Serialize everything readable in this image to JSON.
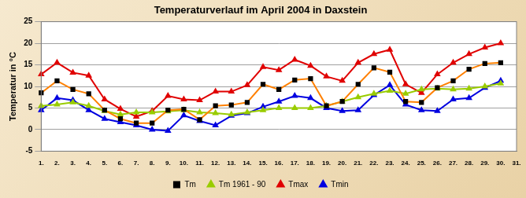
{
  "chart_data": {
    "type": "line",
    "title": "Temperaturverlauf im April 2004 in Daxstein",
    "y_label": "Temperatur in °C",
    "categories": [
      "1.",
      "2.",
      "3.",
      "4.",
      "5.",
      "6.",
      "7.",
      "8.",
      "9.",
      "10.",
      "11.",
      "12.",
      "13.",
      "14.",
      "15.",
      "16.",
      "17.",
      "18.",
      "19.",
      "20.",
      "21.",
      "22.",
      "23.",
      "24.",
      "25.",
      "26.",
      "27.",
      "28.",
      "29.",
      "30.",
      "31."
    ],
    "series": [
      {
        "name": "Tm",
        "color": "#ff8000",
        "marker": "square",
        "values": [
          8.5,
          11.3,
          9.3,
          8.3,
          4.5,
          2.5,
          1.5,
          1.5,
          4.5,
          4.7,
          2.3,
          5.5,
          5.7,
          6.3,
          10.5,
          9.3,
          11.5,
          11.8,
          5.5,
          6.5,
          10.5,
          14.3,
          13.3,
          6.5,
          6.3,
          9.7,
          11.3,
          14,
          15.3,
          15.5,
          null
        ]
      },
      {
        "name": "Tm 1961 - 90",
        "color": "#99cc00",
        "marker": "triangle",
        "values": [
          5.5,
          5.8,
          6.3,
          5.5,
          4.3,
          3.5,
          4,
          4,
          4.2,
          4.5,
          4,
          3.8,
          3.5,
          4,
          4.5,
          5,
          5,
          5,
          5.5,
          6.5,
          7.5,
          8.3,
          9,
          8.3,
          9.3,
          9.5,
          9.3,
          9.5,
          10,
          10.7,
          null
        ]
      },
      {
        "name": "Tmax",
        "color": "#e00000",
        "marker": "triangle",
        "values": [
          12.8,
          15.5,
          13.2,
          12.5,
          7,
          4.8,
          3,
          4.3,
          7.8,
          7,
          6.8,
          8.8,
          8.8,
          10.3,
          14.5,
          13.8,
          16.2,
          14.8,
          12.3,
          11.3,
          15.5,
          17.5,
          18.5,
          10.5,
          8.5,
          12.8,
          15.5,
          17.5,
          19,
          20,
          null
        ]
      },
      {
        "name": "Tmin",
        "color": "#0000e0",
        "marker": "triangle",
        "values": [
          4.5,
          7.3,
          6.8,
          4.5,
          2.5,
          1.7,
          1,
          0,
          -0.3,
          3.3,
          2,
          1,
          3.2,
          3.8,
          5.3,
          6.5,
          7.8,
          7.3,
          5,
          4.3,
          4.5,
          8,
          10.3,
          5.8,
          4.5,
          4.3,
          7,
          7.3,
          9.7,
          11.3,
          null
        ]
      }
    ],
    "ylim": [
      -5,
      25
    ],
    "yticks": [
      -5,
      0,
      5,
      10,
      15,
      20,
      25
    ],
    "grid": true,
    "legend": "bottom"
  }
}
